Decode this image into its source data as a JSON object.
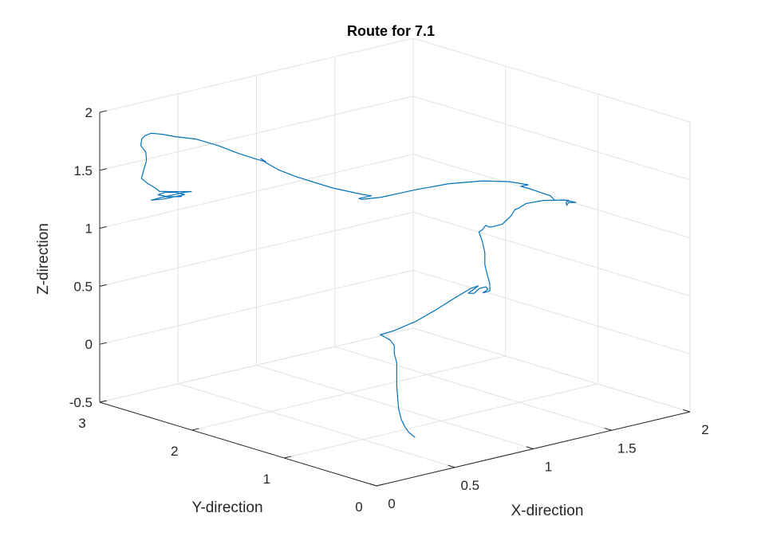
{
  "chart_data": {
    "type": "line3d",
    "title": "Route for 7.1",
    "xlabel": "X-direction",
    "ylabel": "Y-direction",
    "zlabel": "Z-direction",
    "xlim": [
      0,
      2
    ],
    "ylim": [
      0,
      3
    ],
    "zlim": [
      -0.5,
      2
    ],
    "xticks": [
      0,
      0.5,
      1,
      1.5,
      2
    ],
    "xtick_labels": [
      "0",
      "0.5",
      "1",
      "1.5",
      "2"
    ],
    "yticks": [
      0,
      1,
      2,
      3
    ],
    "ytick_labels": [
      "0",
      "1",
      "2",
      "3"
    ],
    "zticks": [
      -0.5,
      0,
      0.5,
      1,
      1.5,
      2
    ],
    "ztick_labels": [
      "-0.5",
      "0",
      "0.5",
      "1",
      "1.5",
      "2"
    ],
    "grid": true,
    "series": [
      {
        "color": "#0072BD",
        "points": [
          [
            0.55,
            0.52,
            -0.38
          ],
          [
            0.53,
            0.55,
            -0.34
          ],
          [
            0.52,
            0.58,
            -0.29
          ],
          [
            0.51,
            0.6,
            -0.23
          ],
          [
            0.5,
            0.61,
            -0.14
          ],
          [
            0.5,
            0.62,
            -0.05
          ],
          [
            0.5,
            0.63,
            0.05
          ],
          [
            0.5,
            0.63,
            0.15
          ],
          [
            0.5,
            0.63,
            0.25
          ],
          [
            0.49,
            0.64,
            0.33
          ],
          [
            0.49,
            0.64,
            0.4
          ],
          [
            0.47,
            0.65,
            0.45
          ],
          [
            0.44,
            0.68,
            0.49
          ],
          [
            0.43,
            0.69,
            0.5
          ],
          [
            0.5,
            0.66,
            0.52
          ],
          [
            0.6,
            0.6,
            0.58
          ],
          [
            0.7,
            0.55,
            0.66
          ],
          [
            0.8,
            0.5,
            0.75
          ],
          [
            0.88,
            0.47,
            0.81
          ],
          [
            0.92,
            0.46,
            0.82
          ],
          [
            0.9,
            0.48,
            0.79
          ],
          [
            0.88,
            0.5,
            0.76
          ],
          [
            0.9,
            0.47,
            0.76
          ],
          [
            0.92,
            0.45,
            0.8
          ],
          [
            0.95,
            0.43,
            0.81
          ],
          [
            0.97,
            0.44,
            0.78
          ],
          [
            0.95,
            0.46,
            0.75
          ],
          [
            0.97,
            0.42,
            0.77
          ],
          [
            0.97,
            0.42,
            0.83
          ],
          [
            0.96,
            0.43,
            0.91
          ],
          [
            0.95,
            0.44,
            1.0
          ],
          [
            0.95,
            0.44,
            1.1
          ],
          [
            0.94,
            0.45,
            1.2
          ],
          [
            0.93,
            0.47,
            1.28
          ],
          [
            0.94,
            0.45,
            1.3
          ],
          [
            0.95,
            0.43,
            1.34
          ],
          [
            0.97,
            0.43,
            1.32
          ],
          [
            0.99,
            0.44,
            1.31
          ],
          [
            1.05,
            0.42,
            1.32
          ],
          [
            1.1,
            0.41,
            1.38
          ],
          [
            1.13,
            0.42,
            1.42
          ],
          [
            1.15,
            0.41,
            1.43
          ],
          [
            1.2,
            0.42,
            1.45
          ],
          [
            1.3,
            0.4,
            1.45
          ],
          [
            1.42,
            0.38,
            1.42
          ],
          [
            1.49,
            0.37,
            1.38
          ],
          [
            1.46,
            0.4,
            1.38
          ],
          [
            1.45,
            0.4,
            1.36
          ],
          [
            1.45,
            0.41,
            1.38
          ],
          [
            1.46,
            0.4,
            1.4
          ],
          [
            1.4,
            0.45,
            1.41
          ],
          [
            1.38,
            0.46,
            1.45
          ],
          [
            1.28,
            0.53,
            1.53
          ],
          [
            1.25,
            0.56,
            1.55
          ],
          [
            1.28,
            0.53,
            1.56
          ],
          [
            1.22,
            0.64,
            1.58
          ],
          [
            1.15,
            0.8,
            1.57
          ],
          [
            1.05,
            1.0,
            1.53
          ],
          [
            0.95,
            1.2,
            1.46
          ],
          [
            0.85,
            1.4,
            1.38
          ],
          [
            0.8,
            1.52,
            1.35
          ],
          [
            0.8,
            1.55,
            1.35
          ],
          [
            0.85,
            1.5,
            1.37
          ],
          [
            0.82,
            1.54,
            1.38
          ],
          [
            0.72,
            1.7,
            1.43
          ],
          [
            0.6,
            1.9,
            1.52
          ],
          [
            0.55,
            2.0,
            1.57
          ],
          [
            0.52,
            2.08,
            1.62
          ],
          [
            0.51,
            2.12,
            1.65
          ],
          [
            0.53,
            2.1,
            1.62
          ],
          [
            0.5,
            2.16,
            1.64
          ],
          [
            0.45,
            2.27,
            1.68
          ],
          [
            0.4,
            2.38,
            1.73
          ],
          [
            0.33,
            2.52,
            1.78
          ],
          [
            0.27,
            2.64,
            1.79
          ],
          [
            0.24,
            2.72,
            1.8
          ],
          [
            0.22,
            2.78,
            1.8
          ],
          [
            0.21,
            2.8,
            1.8
          ],
          [
            0.19,
            2.83,
            1.78
          ],
          [
            0.18,
            2.85,
            1.75
          ],
          [
            0.18,
            2.86,
            1.69
          ],
          [
            0.2,
            2.84,
            1.63
          ],
          [
            0.21,
            2.85,
            1.55
          ],
          [
            0.2,
            2.86,
            1.48
          ],
          [
            0.19,
            2.87,
            1.4
          ],
          [
            0.22,
            2.85,
            1.35
          ],
          [
            0.26,
            2.83,
            1.3
          ],
          [
            0.28,
            2.83,
            1.27
          ],
          [
            0.34,
            2.78,
            1.26
          ],
          [
            0.42,
            2.72,
            1.25
          ],
          [
            0.4,
            2.76,
            1.24
          ],
          [
            0.3,
            2.86,
            1.2
          ],
          [
            0.27,
            2.9,
            1.18
          ],
          [
            0.32,
            2.84,
            1.19
          ],
          [
            0.4,
            2.76,
            1.22
          ],
          [
            0.37,
            2.8,
            1.24
          ],
          [
            0.32,
            2.83,
            1.25
          ],
          [
            0.29,
            2.86,
            1.23
          ],
          [
            0.33,
            2.82,
            1.21
          ],
          [
            0.38,
            2.76,
            1.21
          ],
          [
            0.31,
            2.84,
            1.21
          ]
        ]
      }
    ]
  }
}
